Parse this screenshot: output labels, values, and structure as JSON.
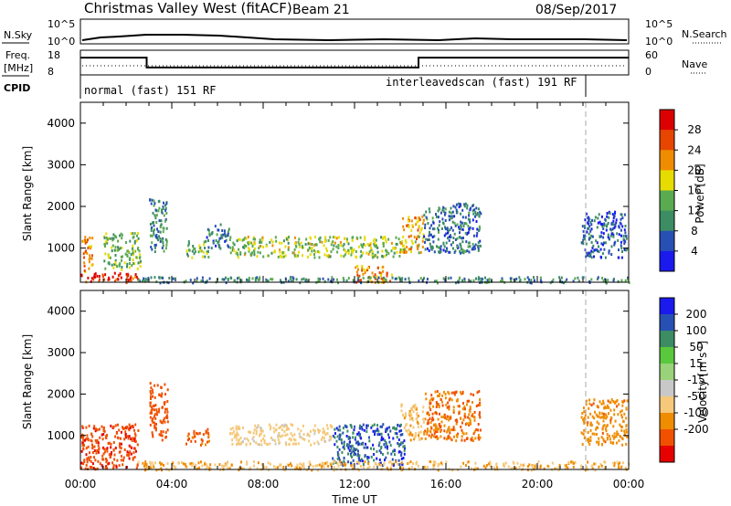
{
  "header": {
    "title": "Christmas Valley West (fitACF)",
    "beam": "Beam 21",
    "date": "08/Sep/2017"
  },
  "summary": {
    "nsky_label": "N.Sky",
    "nsky_ticks": [
      "10^5",
      "10^0"
    ],
    "nsearch_label": "N.Search",
    "freq_label_1": "Freq.",
    "freq_label_2": "[MHz]",
    "freq_ticks": [
      "18",
      "8"
    ],
    "nave_label": "Nave",
    "nave_ticks": [
      "60",
      "0"
    ],
    "cpid_label": "CPID",
    "cpid_1": "normal (fast) 151 RF",
    "cpid_2": "interleavedscan (fast) 191 RF"
  },
  "colors": {
    "power": [
      "#1a1aee",
      "#2850b4",
      "#3c8c64",
      "#5aaa50",
      "#e6dc00",
      "#f08c00",
      "#e64600",
      "#dc0000"
    ],
    "velocity": [
      "#e60000",
      "#f05000",
      "#f08c00",
      "#f5c87a",
      "#c8c8c8",
      "#9ad27a",
      "#5ac83c",
      "#3c8c64",
      "#2850b4",
      "#1a1aee"
    ]
  },
  "chart_data": [
    {
      "type": "heatmap",
      "name": "power-panel",
      "ylabel": "Slant Range [km]",
      "yticks": [
        "4000",
        "3000",
        "2000",
        "1000"
      ],
      "ylim": [
        180,
        4500
      ],
      "xlim": [
        "00:00",
        "24:00"
      ],
      "colorbar_label": "Power [dB]",
      "colorbar_ticks": [
        "28",
        "24",
        "20",
        "16",
        "12",
        "8",
        "4"
      ],
      "color_range": [
        0,
        32
      ],
      "regions": [
        {
          "t": [
            0.0,
            2.5
          ],
          "r": [
            200,
            450
          ],
          "value": 28
        },
        {
          "t": [
            0.0,
            0.5
          ],
          "r": [
            450,
            1300
          ],
          "value": 22
        },
        {
          "t": [
            1.0,
            2.6
          ],
          "r": [
            500,
            1400
          ],
          "value": 14
        },
        {
          "t": [
            3.0,
            3.8
          ],
          "r": [
            900,
            2200
          ],
          "value": 10
        },
        {
          "t": [
            4.6,
            5.6
          ],
          "r": [
            800,
            1200
          ],
          "value": 14
        },
        {
          "t": [
            5.5,
            6.5
          ],
          "r": [
            1000,
            1600
          ],
          "value": 8
        },
        {
          "t": [
            6.5,
            14.2
          ],
          "r": [
            800,
            1300
          ],
          "value": 16
        },
        {
          "t": [
            12.0,
            13.6
          ],
          "r": [
            200,
            600
          ],
          "value": 22
        },
        {
          "t": [
            14.0,
            15.0
          ],
          "r": [
            900,
            1800
          ],
          "value": 20
        },
        {
          "t": [
            15.0,
            17.5
          ],
          "r": [
            900,
            2100
          ],
          "value": 8
        },
        {
          "t": [
            21.9,
            23.9
          ],
          "r": [
            800,
            1900
          ],
          "value": 6
        },
        {
          "t": [
            2.5,
            24.0
          ],
          "r": [
            190,
            330
          ],
          "value": 10
        }
      ]
    },
    {
      "type": "heatmap",
      "name": "velocity-panel",
      "xlabel": "Time UT",
      "ylabel": "Slant Range [km]",
      "yticks": [
        "4000",
        "3000",
        "2000",
        "1000"
      ],
      "ylim": [
        180,
        4500
      ],
      "xlim": [
        "00:00",
        "24:00"
      ],
      "xticks": [
        "00:00",
        "04:00",
        "08:00",
        "12:00",
        "16:00",
        "20:00",
        "00:00"
      ],
      "colorbar_label": "Velocity [m s^-1]",
      "colorbar_ticks": [
        "200",
        "100",
        "50",
        "15",
        "-15",
        "-50",
        "-100",
        "-200"
      ],
      "color_levels": [
        -250,
        -200,
        -100,
        -50,
        -15,
        15,
        50,
        100,
        200,
        250
      ],
      "regions": [
        {
          "t": [
            0.0,
            2.5
          ],
          "r": [
            200,
            1300
          ],
          "value": -180
        },
        {
          "t": [
            3.0,
            3.8
          ],
          "r": [
            900,
            2300
          ],
          "value": -150
        },
        {
          "t": [
            4.6,
            5.6
          ],
          "r": [
            800,
            1200
          ],
          "value": -120
        },
        {
          "t": [
            6.5,
            11.0
          ],
          "r": [
            800,
            1300
          ],
          "value": -30
        },
        {
          "t": [
            11.0,
            14.2
          ],
          "r": [
            300,
            1300
          ],
          "value": 220
        },
        {
          "t": [
            14.0,
            15.0
          ],
          "r": [
            900,
            1800
          ],
          "value": -40
        },
        {
          "t": [
            15.0,
            17.5
          ],
          "r": [
            900,
            2100
          ],
          "value": -100
        },
        {
          "t": [
            21.9,
            23.9
          ],
          "r": [
            800,
            1900
          ],
          "value": -80
        },
        {
          "t": [
            2.5,
            24.0
          ],
          "r": [
            190,
            400
          ],
          "value": -45
        }
      ]
    },
    {
      "type": "line",
      "name": "frequency-panel",
      "ylim": [
        8,
        18
      ],
      "segments": [
        {
          "t": [
            0.0,
            2.9
          ],
          "value": 15
        },
        {
          "t": [
            2.9,
            14.8
          ],
          "value": 11
        },
        {
          "t": [
            14.8,
            24.0
          ],
          "value": 15
        }
      ]
    }
  ]
}
